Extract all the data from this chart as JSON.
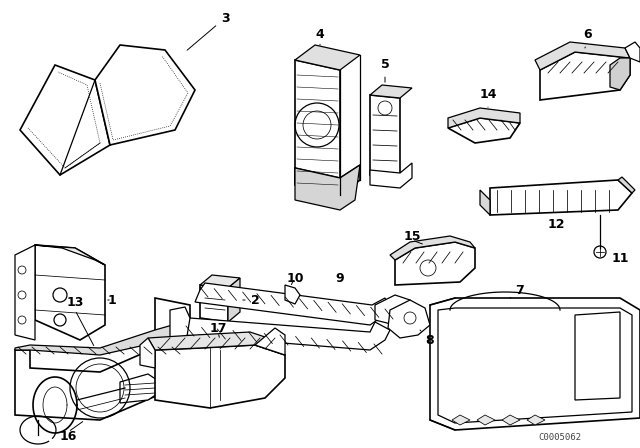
{
  "bg_color": "#ffffff",
  "line_color": "#000000",
  "watermark": "C0005062",
  "fig_w": 6.4,
  "fig_h": 4.48,
  "dpi": 100
}
